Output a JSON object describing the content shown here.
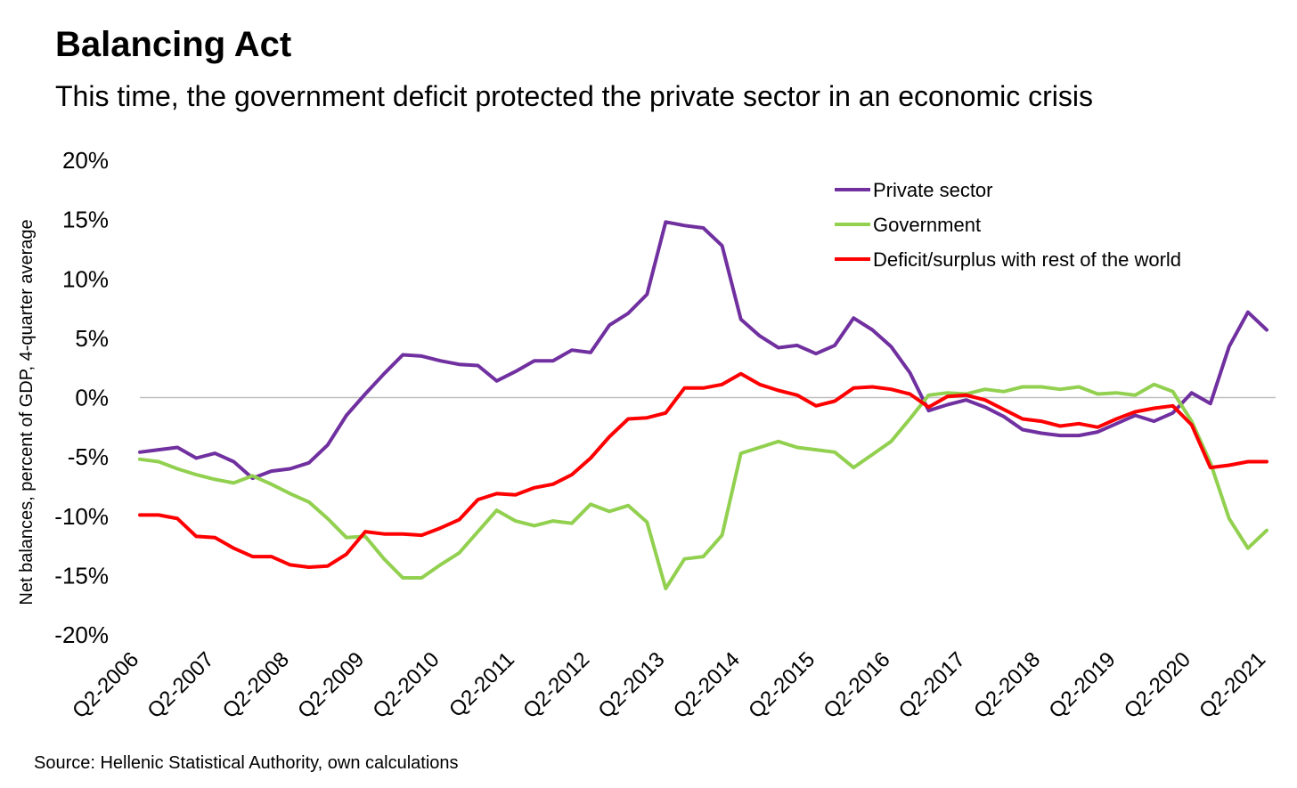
{
  "chart_data": {
    "type": "line",
    "title": "Balancing Act",
    "subtitle": "This time, the government deficit protected the private sector in an economic crisis",
    "ylabel": "Net balances, percent of GDP, 4-quarter average",
    "xlabel": "",
    "source": "Source: Hellenic Statistical Authority, own calculations",
    "ylim": [
      -20,
      20
    ],
    "yticks": [
      20,
      15,
      10,
      5,
      0,
      -5,
      -10,
      -15,
      -20
    ],
    "ytick_labels": [
      "20%",
      "15%",
      "10%",
      "5%",
      "0%",
      "-5%",
      "-10%",
      "-15%",
      "-20%"
    ],
    "xtick_labels": [
      "Q2-2006",
      "Q2-2007",
      "Q2-2008",
      "Q2-2009",
      "Q2-2010",
      "Q2-2011",
      "Q2-2012",
      "Q2-2013",
      "Q2-2014",
      "Q2-2015",
      "Q2-2016",
      "Q2-2017",
      "Q2-2018",
      "Q2-2019",
      "Q2-2020",
      "Q2-2021"
    ],
    "x_start": "Q2-2006",
    "x_end": "Q2-2021",
    "grid": false,
    "legend_position": "top-right",
    "series": [
      {
        "name": "Private sector",
        "color": "#7030a0",
        "values": [
          -4.6,
          -4.4,
          -4.2,
          -5.1,
          -4.7,
          -5.4,
          -6.8,
          -6.2,
          -6.0,
          -5.5,
          -4.0,
          -1.5,
          0.3,
          2.0,
          3.6,
          3.5,
          3.1,
          2.8,
          2.7,
          1.4,
          2.2,
          3.1,
          3.1,
          4.0,
          3.8,
          6.1,
          7.1,
          8.7,
          14.8,
          14.5,
          14.3,
          12.8,
          6.6,
          5.2,
          4.2,
          4.4,
          3.7,
          4.4,
          6.7,
          5.7,
          4.3,
          2.1,
          -1.1,
          -0.6,
          -0.2,
          -0.8,
          -1.6,
          -2.7,
          -3.0,
          -3.2,
          -3.2,
          -2.9,
          -2.2,
          -1.5,
          -2.0,
          -1.3,
          0.4,
          -0.5,
          4.3,
          7.2,
          5.7
        ]
      },
      {
        "name": "Government",
        "color": "#92d050",
        "values": [
          -5.2,
          -5.4,
          -6.0,
          -6.5,
          -6.9,
          -7.2,
          -6.6,
          -7.3,
          -8.1,
          -8.8,
          -10.2,
          -11.8,
          -11.7,
          -13.6,
          -15.2,
          -15.2,
          -14.1,
          -13.1,
          -11.3,
          -9.5,
          -10.4,
          -10.8,
          -10.4,
          -10.6,
          -9.0,
          -9.6,
          -9.1,
          -10.5,
          -16.1,
          -13.6,
          -13.4,
          -11.6,
          -4.7,
          -4.2,
          -3.7,
          -4.2,
          -4.4,
          -4.6,
          -5.9,
          -4.8,
          -3.7,
          -1.8,
          0.2,
          0.4,
          0.3,
          0.7,
          0.5,
          0.9,
          0.9,
          0.7,
          0.9,
          0.3,
          0.4,
          0.2,
          1.1,
          0.5,
          -2.0,
          -5.5,
          -10.2,
          -12.7,
          -11.2
        ]
      },
      {
        "name": "Deficit/surplus with rest of the world",
        "color": "#ff0000",
        "values": [
          -9.9,
          -9.9,
          -10.2,
          -11.7,
          -11.8,
          -12.7,
          -13.4,
          -13.4,
          -14.1,
          -14.3,
          -14.2,
          -13.2,
          -11.3,
          -11.5,
          -11.5,
          -11.6,
          -11.0,
          -10.3,
          -8.6,
          -8.1,
          -8.2,
          -7.6,
          -7.3,
          -6.5,
          -5.1,
          -3.3,
          -1.8,
          -1.7,
          -1.3,
          0.8,
          0.8,
          1.1,
          2.0,
          1.1,
          0.6,
          0.2,
          -0.7,
          -0.3,
          0.8,
          0.9,
          0.7,
          0.3,
          -0.8,
          0.1,
          0.2,
          -0.2,
          -1.0,
          -1.8,
          -2.0,
          -2.4,
          -2.2,
          -2.5,
          -1.8,
          -1.2,
          -0.9,
          -0.7,
          -2.3,
          -5.9,
          -5.7,
          -5.4,
          -5.4
        ]
      }
    ]
  }
}
